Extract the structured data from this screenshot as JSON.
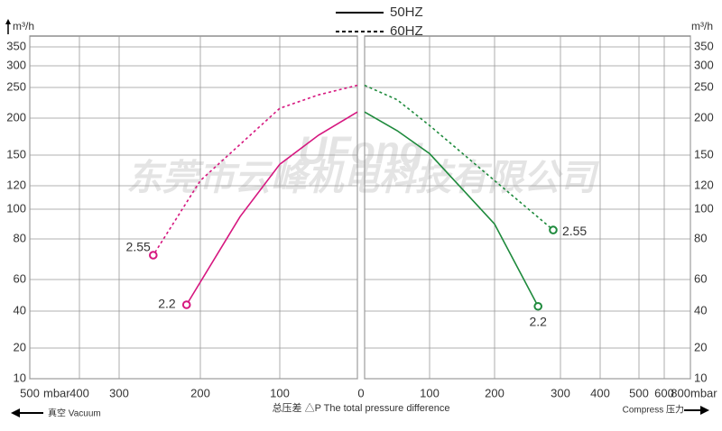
{
  "chart_data": {
    "type": "line",
    "legend": [
      {
        "name": "50HZ",
        "dashed": false
      },
      {
        "name": "60HZ",
        "dashed": true
      }
    ],
    "y_label": "m³/h",
    "ylim": [
      10,
      350
    ],
    "yticks": [
      10,
      20,
      40,
      60,
      80,
      100,
      120,
      150,
      200,
      250,
      300,
      350
    ],
    "x_label": "总压差 △P The total pressure difference",
    "watermark": "UFong",
    "watermark_company": "东莞市云峰机电科技有限公司",
    "grid": true,
    "panels": [
      {
        "x_unit": "mbar",
        "direction": "真空 Vacuum",
        "arrow": "left",
        "xlim": [
          500,
          0
        ],
        "xticks": [
          500,
          400,
          300,
          200,
          100,
          0
        ],
        "series": [
          {
            "legend_index": 0,
            "color": "#d6177f",
            "end_label": "2.2",
            "x": [
              0,
              50,
              100,
              150,
              217
            ],
            "values": [
              210,
              177,
              141,
              95,
              44
            ]
          },
          {
            "legend_index": 1,
            "color": "#d6177f",
            "end_label": "2.55",
            "x": [
              0,
              50,
              100,
              200,
              258
            ],
            "values": [
              255,
              238,
              216,
              125,
              72
            ]
          }
        ]
      },
      {
        "x_unit": "mbar",
        "direction": "Compress 压力",
        "arrow": "right",
        "xlim": [
          0,
          800
        ],
        "xticks": [
          0,
          100,
          200,
          300,
          400,
          500,
          600,
          800
        ],
        "series": [
          {
            "legend_index": 0,
            "color": "#1e8a3c",
            "end_label": "2.2",
            "x": [
              0,
              50,
              100,
              200,
              266
            ],
            "values": [
              210,
              183,
              152,
              90,
              43
            ]
          },
          {
            "legend_index": 1,
            "color": "#1e8a3c",
            "end_label": "2.55",
            "x": [
              0,
              50,
              100,
              200,
              289
            ],
            "values": [
              255,
              230,
              190,
              125,
              86
            ]
          }
        ]
      }
    ]
  }
}
